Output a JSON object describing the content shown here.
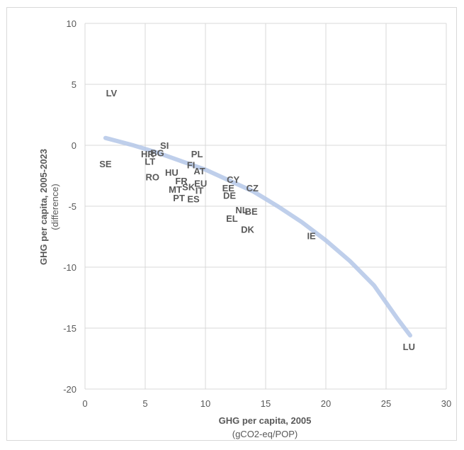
{
  "chart_data": {
    "type": "scatter",
    "xlabel": "GHG per capita, 2005",
    "xlabel_unit": "(gCO2-eq/POP)",
    "ylabel": "GHG per capita, 2005-2023",
    "ylabel_unit": "(difference)",
    "xlim": [
      0,
      30
    ],
    "ylim": [
      -20,
      10
    ],
    "xticks": [
      "0",
      "5",
      "10",
      "15",
      "20",
      "25",
      "30"
    ],
    "yticks": [
      "-20",
      "-15",
      "-10",
      "-5",
      "0",
      "5",
      "10"
    ],
    "grid": true,
    "trendline": {
      "type": "polynomial",
      "color": "#b4c7e7",
      "x": [
        1.7,
        4,
        6,
        8,
        10,
        12,
        14,
        16,
        18,
        20,
        22,
        24,
        26,
        27
      ],
      "y": [
        0.6,
        0.0,
        -0.6,
        -1.3,
        -2.0,
        -2.9,
        -3.8,
        -5.0,
        -6.3,
        -7.8,
        -9.5,
        -11.5,
        -14.3,
        -15.6
      ]
    },
    "points": [
      {
        "label": "LV",
        "x": 2.2,
        "y": 4.3
      },
      {
        "label": "SE",
        "x": 1.7,
        "y": -1.5
      },
      {
        "label": "SI",
        "x": 6.6,
        "y": 0.0
      },
      {
        "label": "BG",
        "x": 6.0,
        "y": -0.6
      },
      {
        "label": "HR",
        "x": 5.2,
        "y": -0.7
      },
      {
        "label": "LT",
        "x": 5.4,
        "y": -1.3
      },
      {
        "label": "RO",
        "x": 5.6,
        "y": -2.6
      },
      {
        "label": "PL",
        "x": 9.3,
        "y": -0.7
      },
      {
        "label": "FI",
        "x": 8.8,
        "y": -1.6
      },
      {
        "label": "AT",
        "x": 9.5,
        "y": -2.1
      },
      {
        "label": "HU",
        "x": 7.2,
        "y": -2.2
      },
      {
        "label": "FR",
        "x": 8.0,
        "y": -2.9
      },
      {
        "label": "EU",
        "x": 9.6,
        "y": -3.1
      },
      {
        "label": "SK",
        "x": 8.6,
        "y": -3.4
      },
      {
        "label": "MT",
        "x": 7.5,
        "y": -3.6
      },
      {
        "label": "IT",
        "x": 9.5,
        "y": -3.7
      },
      {
        "label": "PT",
        "x": 7.8,
        "y": -4.3
      },
      {
        "label": "ES",
        "x": 9.0,
        "y": -4.4
      },
      {
        "label": "CY",
        "x": 12.3,
        "y": -2.8
      },
      {
        "label": "EE",
        "x": 11.9,
        "y": -3.5
      },
      {
        "label": "CZ",
        "x": 13.9,
        "y": -3.5
      },
      {
        "label": "DE",
        "x": 12.0,
        "y": -4.1
      },
      {
        "label": "NL",
        "x": 13.0,
        "y": -5.3
      },
      {
        "label": "BE",
        "x": 13.8,
        "y": -5.4
      },
      {
        "label": "EL",
        "x": 12.2,
        "y": -6.0
      },
      {
        "label": "DK",
        "x": 13.5,
        "y": -6.9
      },
      {
        "label": "IE",
        "x": 18.8,
        "y": -7.4
      },
      {
        "label": "LU",
        "x": 26.9,
        "y": -16.5
      }
    ]
  }
}
